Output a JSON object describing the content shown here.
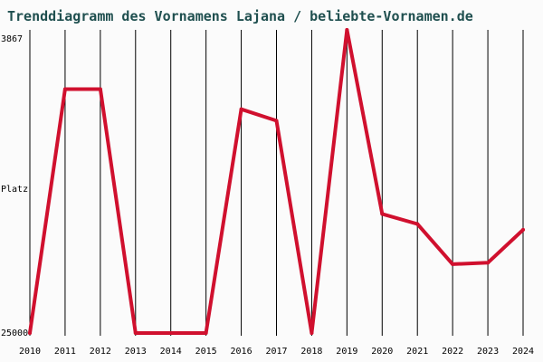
{
  "chart_data": {
    "type": "line",
    "title": "Trenddiagramm des Vornamens Lajana / beliebte-Vornamen.de",
    "xlabel": "",
    "ylabel": "Platz",
    "y_top_label": "3867",
    "y_bottom_label": "25000",
    "ylim": [
      25000,
      3867
    ],
    "grid": "vertical",
    "x": [
      "2010",
      "2011",
      "2012",
      "2013",
      "2014",
      "2015",
      "2016",
      "2017",
      "2018",
      "2019",
      "2020",
      "2021",
      "2022",
      "2023",
      "2024"
    ],
    "series": [
      {
        "values": [
          25000,
          8000,
          8000,
          25000,
          25000,
          25000,
          9400,
          10200,
          25000,
          3867,
          16700,
          17400,
          20200,
          20100,
          17800
        ]
      }
    ],
    "colors": {
      "line": "#d0102e",
      "grid": "#000000",
      "title": "#1f4f4f"
    }
  }
}
